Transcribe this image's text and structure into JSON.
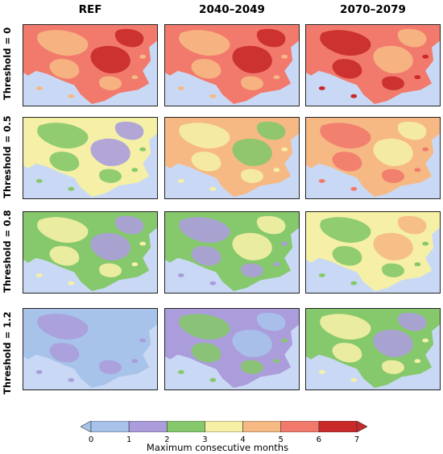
{
  "columns": [
    "REF",
    "2040–2049",
    "2070–2079"
  ],
  "rows": [
    "Threshold = 0",
    "Threshold = 0.5",
    "Threshold = 0.8",
    "Threshold = 1.2"
  ],
  "palette": {
    "sea": "#c9d9f5",
    "c0": "#a7c3ea",
    "c1": "#ab9ddb",
    "c2": "#86c86c",
    "c3": "#f5f0a6",
    "c4": "#f6b984",
    "c5": "#f27a6c",
    "c6": "#c82a2a"
  },
  "colorbar": {
    "ticks": [
      "0",
      "1",
      "2",
      "3",
      "4",
      "5",
      "6",
      "7"
    ],
    "label": "Maximum consecutive months",
    "colors": [
      "#a7c3ea",
      "#ab9ddb",
      "#86c86c",
      "#f5f0a6",
      "#f6b984",
      "#f27a6c",
      "#c82a2a"
    ]
  },
  "panels": [
    [
      {
        "base": "c5",
        "second": "c4",
        "third": "c6"
      },
      {
        "base": "c5",
        "second": "c4",
        "third": "c6"
      },
      {
        "base": "c5",
        "second": "c6",
        "third": "c4"
      }
    ],
    [
      {
        "base": "c3",
        "second": "c2",
        "third": "c1"
      },
      {
        "base": "c4",
        "second": "c3",
        "third": "c2"
      },
      {
        "base": "c4",
        "second": "c5",
        "third": "c3"
      }
    ],
    [
      {
        "base": "c2",
        "second": "c3",
        "third": "c1"
      },
      {
        "base": "c2",
        "second": "c1",
        "third": "c3"
      },
      {
        "base": "c3",
        "second": "c2",
        "third": "c4"
      }
    ],
    [
      {
        "base": "c0",
        "second": "c1",
        "third": "c0"
      },
      {
        "base": "c1",
        "second": "c2",
        "third": "c0"
      },
      {
        "base": "c2",
        "second": "c3",
        "third": "c1"
      }
    ]
  ]
}
